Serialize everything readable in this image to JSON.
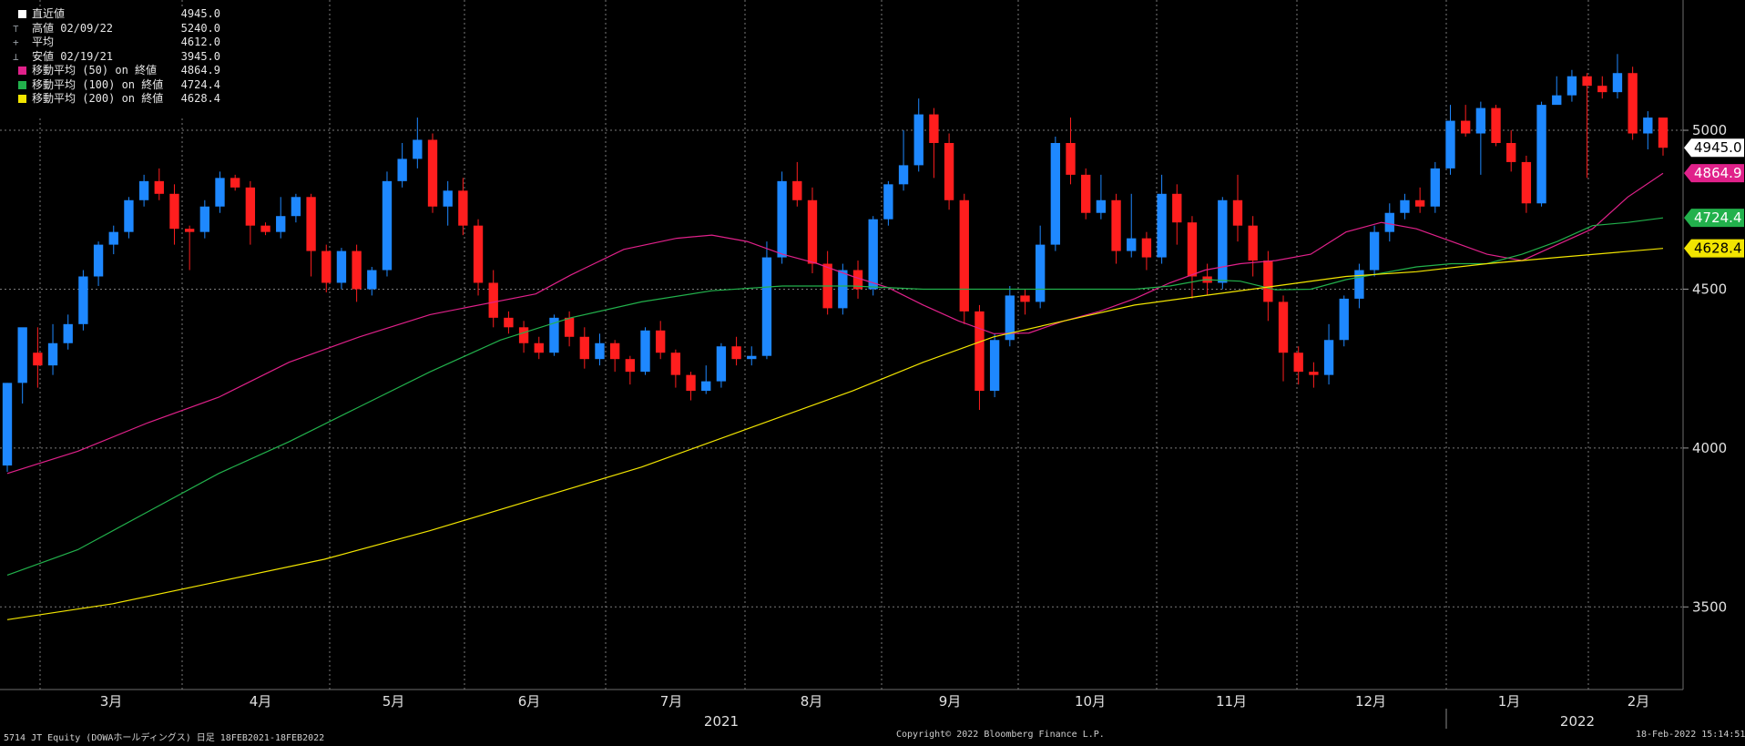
{
  "chart_data": {
    "type": "candlestick",
    "ticker": "5714 JT Equity (DOWAホールディングス) 日足 18FEB2021-18FEB2022",
    "y_ticks": [
      3500,
      4000,
      4500,
      5000
    ],
    "ylim": [
      3240,
      5410
    ],
    "x_month_labels": [
      "3月",
      "4月",
      "5月",
      "6月",
      "7月",
      "8月",
      "9月",
      "10月",
      "11月",
      "12月",
      "1月",
      "2月"
    ],
    "x_year_labels": [
      "2021",
      "2022"
    ],
    "legend": [
      {
        "symbol": "square",
        "label": "直近値",
        "value": "4945.0",
        "color": "#ffffff"
      },
      {
        "symbol": "high",
        "label": "高値 02/09/22",
        "value": "5240.0",
        "color": "#9aa0a6"
      },
      {
        "symbol": "avg",
        "label": "平均",
        "value": "4612.0",
        "color": "#9aa0a6"
      },
      {
        "symbol": "low",
        "label": "安値 02/19/21",
        "value": "3945.0",
        "color": "#9aa0a6"
      },
      {
        "symbol": "swatch",
        "label": "移動平均 (50) on 終値",
        "value": "4864.9",
        "color": "#e0218a"
      },
      {
        "symbol": "swatch",
        "label": "移動平均 (100) on 終値",
        "value": "4724.4",
        "color": "#22b14c"
      },
      {
        "symbol": "swatch",
        "label": "移動平均 (200) on 終値",
        "value": "4628.4",
        "color": "#f2e500"
      }
    ],
    "right_labels": [
      {
        "text": "4945.0",
        "value": 4945.0,
        "bg": "#ffffff",
        "fg": "#000000"
      },
      {
        "text": "4864.9",
        "value": 4864.9,
        "bg": "#e0218a",
        "fg": "#ffffff"
      },
      {
        "text": "4724.4",
        "value": 4724.4,
        "bg": "#22b14c",
        "fg": "#ffffff"
      },
      {
        "text": "4628.4",
        "value": 4628.4,
        "bg": "#f2e500",
        "fg": "#000000"
      }
    ],
    "series": [
      {
        "name": "移動平均 (50) on 終値",
        "color": "#e0218a",
        "values": [
          [
            0,
            3920
          ],
          [
            20,
            3990
          ],
          [
            40,
            4080
          ],
          [
            60,
            4160
          ],
          [
            80,
            4270
          ],
          [
            100,
            4350
          ],
          [
            120,
            4420
          ],
          [
            150,
            4485
          ],
          [
            160,
            4545
          ],
          [
            175,
            4625
          ],
          [
            190,
            4660
          ],
          [
            200,
            4670
          ],
          [
            210,
            4650
          ],
          [
            220,
            4610
          ],
          [
            230,
            4580
          ],
          [
            240,
            4540
          ],
          [
            250,
            4505
          ],
          [
            260,
            4450
          ],
          [
            270,
            4400
          ],
          [
            280,
            4360
          ],
          [
            290,
            4362
          ],
          [
            300,
            4400
          ],
          [
            310,
            4430
          ],
          [
            320,
            4470
          ],
          [
            330,
            4520
          ],
          [
            340,
            4560
          ],
          [
            350,
            4580
          ],
          [
            360,
            4590
          ],
          [
            370,
            4610
          ],
          [
            380,
            4680
          ],
          [
            390,
            4710
          ],
          [
            400,
            4690
          ],
          [
            410,
            4650
          ],
          [
            420,
            4610
          ],
          [
            430,
            4590
          ],
          [
            440,
            4640
          ],
          [
            450,
            4690
          ],
          [
            460,
            4790
          ],
          [
            470,
            4864.9
          ]
        ]
      },
      {
        "name": "移動平均 (100) on 終値",
        "color": "#22b14c",
        "values": [
          [
            0,
            3600
          ],
          [
            20,
            3680
          ],
          [
            40,
            3800
          ],
          [
            60,
            3920
          ],
          [
            80,
            4020
          ],
          [
            100,
            4130
          ],
          [
            120,
            4240
          ],
          [
            140,
            4340
          ],
          [
            160,
            4410
          ],
          [
            180,
            4460
          ],
          [
            200,
            4495
          ],
          [
            220,
            4510
          ],
          [
            240,
            4510
          ],
          [
            260,
            4500
          ],
          [
            280,
            4500
          ],
          [
            300,
            4500
          ],
          [
            320,
            4500
          ],
          [
            330,
            4510
          ],
          [
            340,
            4530
          ],
          [
            350,
            4525
          ],
          [
            360,
            4498
          ],
          [
            370,
            4500
          ],
          [
            380,
            4530
          ],
          [
            390,
            4550
          ],
          [
            400,
            4570
          ],
          [
            410,
            4580
          ],
          [
            420,
            4580
          ],
          [
            430,
            4610
          ],
          [
            440,
            4650
          ],
          [
            450,
            4700
          ],
          [
            460,
            4710
          ],
          [
            470,
            4724.4
          ]
        ]
      },
      {
        "name": "移動平均 (200) on 終値",
        "color": "#f2e500",
        "values": [
          [
            0,
            3460
          ],
          [
            30,
            3510
          ],
          [
            60,
            3580
          ],
          [
            90,
            3650
          ],
          [
            120,
            3740
          ],
          [
            150,
            3840
          ],
          [
            180,
            3940
          ],
          [
            210,
            4060
          ],
          [
            240,
            4180
          ],
          [
            260,
            4270
          ],
          [
            280,
            4350
          ],
          [
            300,
            4400
          ],
          [
            320,
            4450
          ],
          [
            340,
            4480
          ],
          [
            360,
            4510
          ],
          [
            380,
            4540
          ],
          [
            400,
            4555
          ],
          [
            420,
            4580
          ],
          [
            440,
            4600
          ],
          [
            470,
            4628.4
          ]
        ]
      }
    ],
    "candles_approx": [
      [
        3945,
        4205,
        3925,
        4205
      ],
      [
        4205,
        4380,
        4140,
        4300
      ],
      [
        4300,
        4260,
        4190,
        4380
      ],
      [
        4260,
        4330,
        4230,
        4390
      ],
      [
        4330,
        4390,
        4310,
        4420
      ],
      [
        4390,
        4540,
        4370,
        4560
      ],
      [
        4540,
        4640,
        4510,
        4650
      ],
      [
        4640,
        4680,
        4610,
        4700
      ],
      [
        4680,
        4780,
        4660,
        4790
      ],
      [
        4780,
        4840,
        4760,
        4860
      ],
      [
        4840,
        4800,
        4780,
        4880
      ],
      [
        4800,
        4690,
        4640,
        4830
      ],
      [
        4690,
        4680,
        4560,
        4700
      ],
      [
        4680,
        4760,
        4660,
        4780
      ],
      [
        4760,
        4850,
        4740,
        4870
      ],
      [
        4850,
        4820,
        4810,
        4860
      ],
      [
        4820,
        4700,
        4640,
        4840
      ],
      [
        4700,
        4680,
        4670,
        4710
      ],
      [
        4680,
        4730,
        4660,
        4790
      ],
      [
        4730,
        4790,
        4710,
        4800
      ],
      [
        4790,
        4620,
        4540,
        4800
      ],
      [
        4620,
        4520,
        4490,
        4640
      ],
      [
        4520,
        4620,
        4500,
        4630
      ],
      [
        4620,
        4500,
        4460,
        4640
      ],
      [
        4500,
        4560,
        4480,
        4570
      ],
      [
        4560,
        4840,
        4540,
        4870
      ],
      [
        4840,
        4910,
        4820,
        4960
      ],
      [
        4910,
        4970,
        4880,
        5040
      ],
      [
        4970,
        4760,
        4740,
        4990
      ],
      [
        4760,
        4810,
        4700,
        4840
      ],
      [
        4810,
        4700,
        4670,
        4850
      ],
      [
        4700,
        4520,
        4480,
        4720
      ],
      [
        4520,
        4410,
        4380,
        4560
      ],
      [
        4410,
        4380,
        4360,
        4430
      ],
      [
        4380,
        4330,
        4300,
        4400
      ],
      [
        4330,
        4300,
        4280,
        4350
      ],
      [
        4300,
        4410,
        4290,
        4420
      ],
      [
        4410,
        4350,
        4320,
        4430
      ],
      [
        4350,
        4280,
        4250,
        4380
      ],
      [
        4280,
        4330,
        4260,
        4360
      ],
      [
        4330,
        4280,
        4240,
        4340
      ],
      [
        4280,
        4240,
        4200,
        4290
      ],
      [
        4240,
        4370,
        4230,
        4380
      ],
      [
        4370,
        4300,
        4280,
        4400
      ],
      [
        4300,
        4230,
        4190,
        4310
      ],
      [
        4230,
        4180,
        4150,
        4240
      ],
      [
        4180,
        4210,
        4170,
        4260
      ],
      [
        4210,
        4320,
        4190,
        4330
      ],
      [
        4320,
        4280,
        4260,
        4350
      ],
      [
        4280,
        4290,
        4260,
        4320
      ],
      [
        4290,
        4600,
        4280,
        4650
      ],
      [
        4600,
        4840,
        4580,
        4870
      ],
      [
        4840,
        4780,
        4760,
        4900
      ],
      [
        4780,
        4580,
        4550,
        4820
      ],
      [
        4580,
        4440,
        4420,
        4620
      ],
      [
        4440,
        4560,
        4420,
        4580
      ],
      [
        4560,
        4500,
        4470,
        4590
      ],
      [
        4500,
        4720,
        4480,
        4730
      ],
      [
        4720,
        4830,
        4700,
        4840
      ],
      [
        4830,
        4890,
        4810,
        5000
      ],
      [
        4890,
        5050,
        4870,
        5100
      ],
      [
        5050,
        4960,
        4850,
        5070
      ],
      [
        4960,
        4780,
        4750,
        4990
      ],
      [
        4780,
        4430,
        4390,
        4800
      ],
      [
        4430,
        4180,
        4120,
        4450
      ],
      [
        4180,
        4340,
        4160,
        4360
      ],
      [
        4340,
        4480,
        4320,
        4510
      ],
      [
        4480,
        4460,
        4420,
        4500
      ],
      [
        4460,
        4640,
        4440,
        4700
      ],
      [
        4640,
        4960,
        4620,
        4980
      ],
      [
        4960,
        4860,
        4830,
        5040
      ],
      [
        4860,
        4740,
        4720,
        4880
      ],
      [
        4740,
        4780,
        4720,
        4860
      ],
      [
        4780,
        4620,
        4580,
        4800
      ],
      [
        4620,
        4660,
        4600,
        4800
      ],
      [
        4660,
        4600,
        4560,
        4680
      ],
      [
        4600,
        4800,
        4580,
        4860
      ],
      [
        4800,
        4710,
        4640,
        4830
      ],
      [
        4710,
        4540,
        4470,
        4730
      ],
      [
        4540,
        4520,
        4480,
        4580
      ],
      [
        4520,
        4780,
        4500,
        4790
      ],
      [
        4780,
        4700,
        4650,
        4860
      ],
      [
        4700,
        4590,
        4540,
        4730
      ],
      [
        4590,
        4460,
        4400,
        4620
      ],
      [
        4460,
        4300,
        4210,
        4480
      ],
      [
        4300,
        4240,
        4200,
        4320
      ],
      [
        4240,
        4230,
        4190,
        4270
      ],
      [
        4230,
        4340,
        4200,
        4390
      ],
      [
        4340,
        4470,
        4320,
        4480
      ],
      [
        4470,
        4560,
        4440,
        4580
      ],
      [
        4560,
        4680,
        4540,
        4700
      ],
      [
        4680,
        4740,
        4650,
        4770
      ],
      [
        4740,
        4780,
        4720,
        4800
      ],
      [
        4780,
        4760,
        4740,
        4820
      ],
      [
        4760,
        4880,
        4740,
        4900
      ],
      [
        4880,
        5030,
        4860,
        5080
      ],
      [
        5030,
        4990,
        4980,
        5080
      ],
      [
        4990,
        5070,
        4860,
        5090
      ],
      [
        5070,
        4960,
        4950,
        5080
      ],
      [
        4960,
        4900,
        4870,
        5000
      ],
      [
        4900,
        4770,
        4740,
        4920
      ],
      [
        4770,
        5080,
        4760,
        5090
      ],
      [
        5080,
        5110,
        5090,
        5170
      ],
      [
        5110,
        5170,
        5090,
        5190
      ],
      [
        5170,
        5140,
        4850,
        5180
      ],
      [
        5140,
        5120,
        5100,
        5170
      ],
      [
        5120,
        5180,
        5100,
        5240
      ],
      [
        5180,
        4990,
        4970,
        5200
      ],
      [
        4990,
        5040,
        4940,
        5060
      ],
      [
        5040,
        4945,
        4920,
        4990
      ]
    ]
  }
}
